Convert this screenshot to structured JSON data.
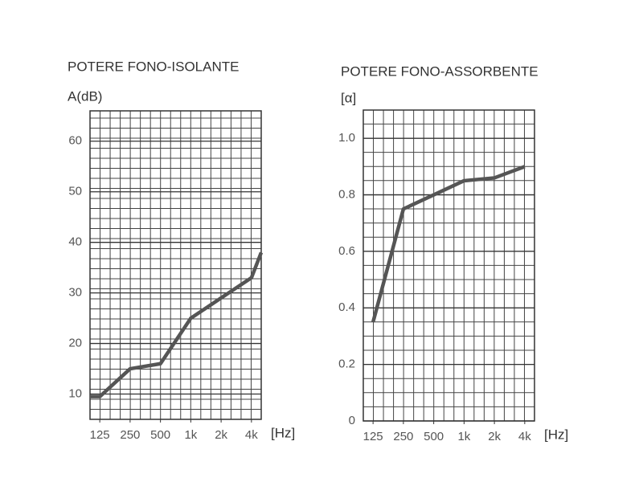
{
  "chart_data": [
    {
      "type": "line",
      "title": "POTERE FONO-ISOLANTE",
      "y_label": "A(dB)",
      "x_label": "[Hz]",
      "log_x": true,
      "x": [
        100,
        125,
        250,
        500,
        1000,
        2000,
        4000,
        5000
      ],
      "series": [
        {
          "color": "#555555",
          "values": [
            9.5,
            9.5,
            15,
            16,
            25,
            29,
            33,
            38
          ]
        }
      ],
      "xlim": [
        100,
        5000
      ],
      "ylim": [
        5,
        66
      ],
      "xticks": [
        125,
        250,
        500,
        {
          "value": 1000,
          "label": "1k"
        },
        {
          "value": 2000,
          "label": "2k"
        },
        {
          "value": 4000,
          "label": "4k"
        }
      ],
      "yticks": [
        10,
        20,
        30,
        40,
        50,
        60
      ],
      "grid": true
    },
    {
      "type": "line",
      "title": "POTERE FONO-ASSORBENTE",
      "y_label": "[α]",
      "x_label": "[Hz]",
      "log_x": true,
      "x": [
        125,
        250,
        500,
        1000,
        2000,
        4000
      ],
      "series": [
        {
          "color": "#555555",
          "values": [
            0.35,
            0.75,
            0.8,
            0.85,
            0.86,
            0.9
          ]
        }
      ],
      "xlim": [
        100,
        5000
      ],
      "ylim": [
        0,
        1.1
      ],
      "xticks": [
        125,
        250,
        500,
        {
          "value": 1000,
          "label": "1k"
        },
        {
          "value": 2000,
          "label": "2k"
        },
        {
          "value": 4000,
          "label": "4k"
        }
      ],
      "yticks": [
        0,
        0.2,
        0.4,
        0.6,
        0.8,
        {
          "value": 1,
          "label": "1.0"
        }
      ],
      "grid": true
    }
  ]
}
